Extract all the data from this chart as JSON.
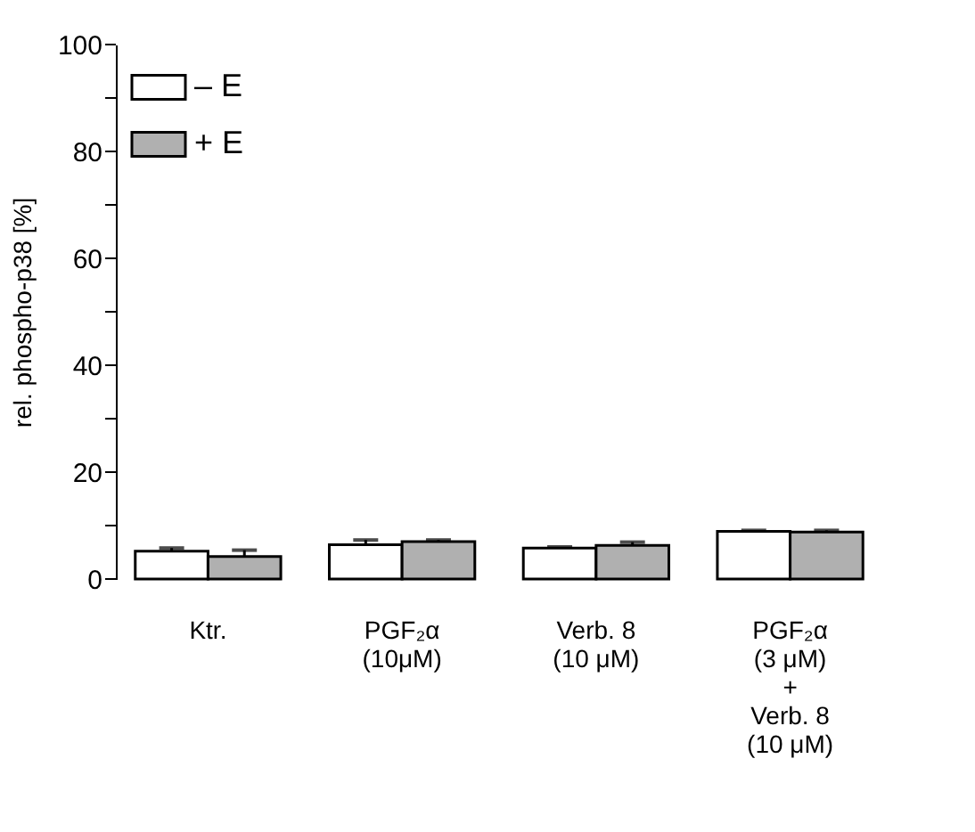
{
  "chart_data": {
    "type": "bar",
    "ylabel": "rel. phospho-p38 [%]",
    "categories": [
      "Ktr.",
      "PGF₂α\n(10μM)",
      "Verb. 8\n(10 μM)",
      "PGF₂α\n(3 μM)\n+\nVerb. 8\n(10 μM)"
    ],
    "series": [
      {
        "name": "– E",
        "color": "#ffffff",
        "values": [
          5.2,
          6.4,
          5.8,
          8.9
        ],
        "errors": [
          [
            5.2,
            5.8
          ],
          [
            6.4,
            7.3
          ],
          [
            5.8,
            6.0
          ],
          [
            8.9,
            9.1
          ]
        ]
      },
      {
        "name": "+ E",
        "color": "#b0b0b0",
        "values": [
          4.2,
          7.0,
          6.3,
          8.8
        ],
        "errors": [
          [
            4.2,
            5.4
          ],
          [
            7.0,
            7.3
          ],
          [
            6.3,
            6.9
          ],
          [
            8.8,
            9.1
          ]
        ]
      }
    ],
    "ylim": [
      0,
      100
    ],
    "yticks": [
      0,
      {
        "value": 10,
        "label": null
      },
      20,
      {
        "value": 30,
        "label": null
      },
      40,
      {
        "value": 50,
        "label": null
      },
      60,
      {
        "value": 70,
        "label": null
      },
      80,
      {
        "value": 90,
        "label": null
      },
      100
    ],
    "grid": false,
    "legend": "top left"
  }
}
